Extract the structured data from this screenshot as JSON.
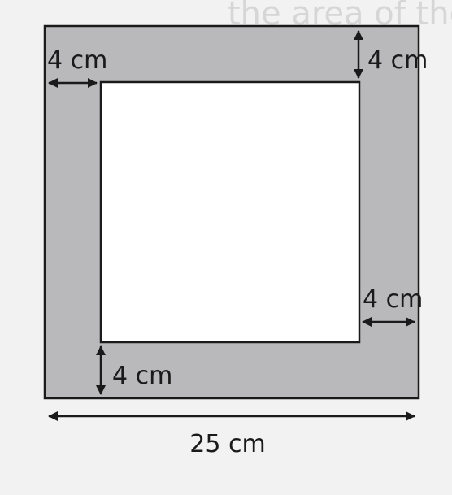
{
  "colors": {
    "background": "#f2f2f2",
    "frame_fill": "#b9b9bc",
    "inner_fill": "#ffffff",
    "stroke": "#1a1a1a"
  },
  "figure": {
    "outer_side_label": "25 cm",
    "border_top_label": "4 cm",
    "border_left_label": "4 cm",
    "border_right_label": "4 cm",
    "border_bottom_label": "4 cm"
  },
  "bleed_through": {
    "text": "the area of the"
  }
}
